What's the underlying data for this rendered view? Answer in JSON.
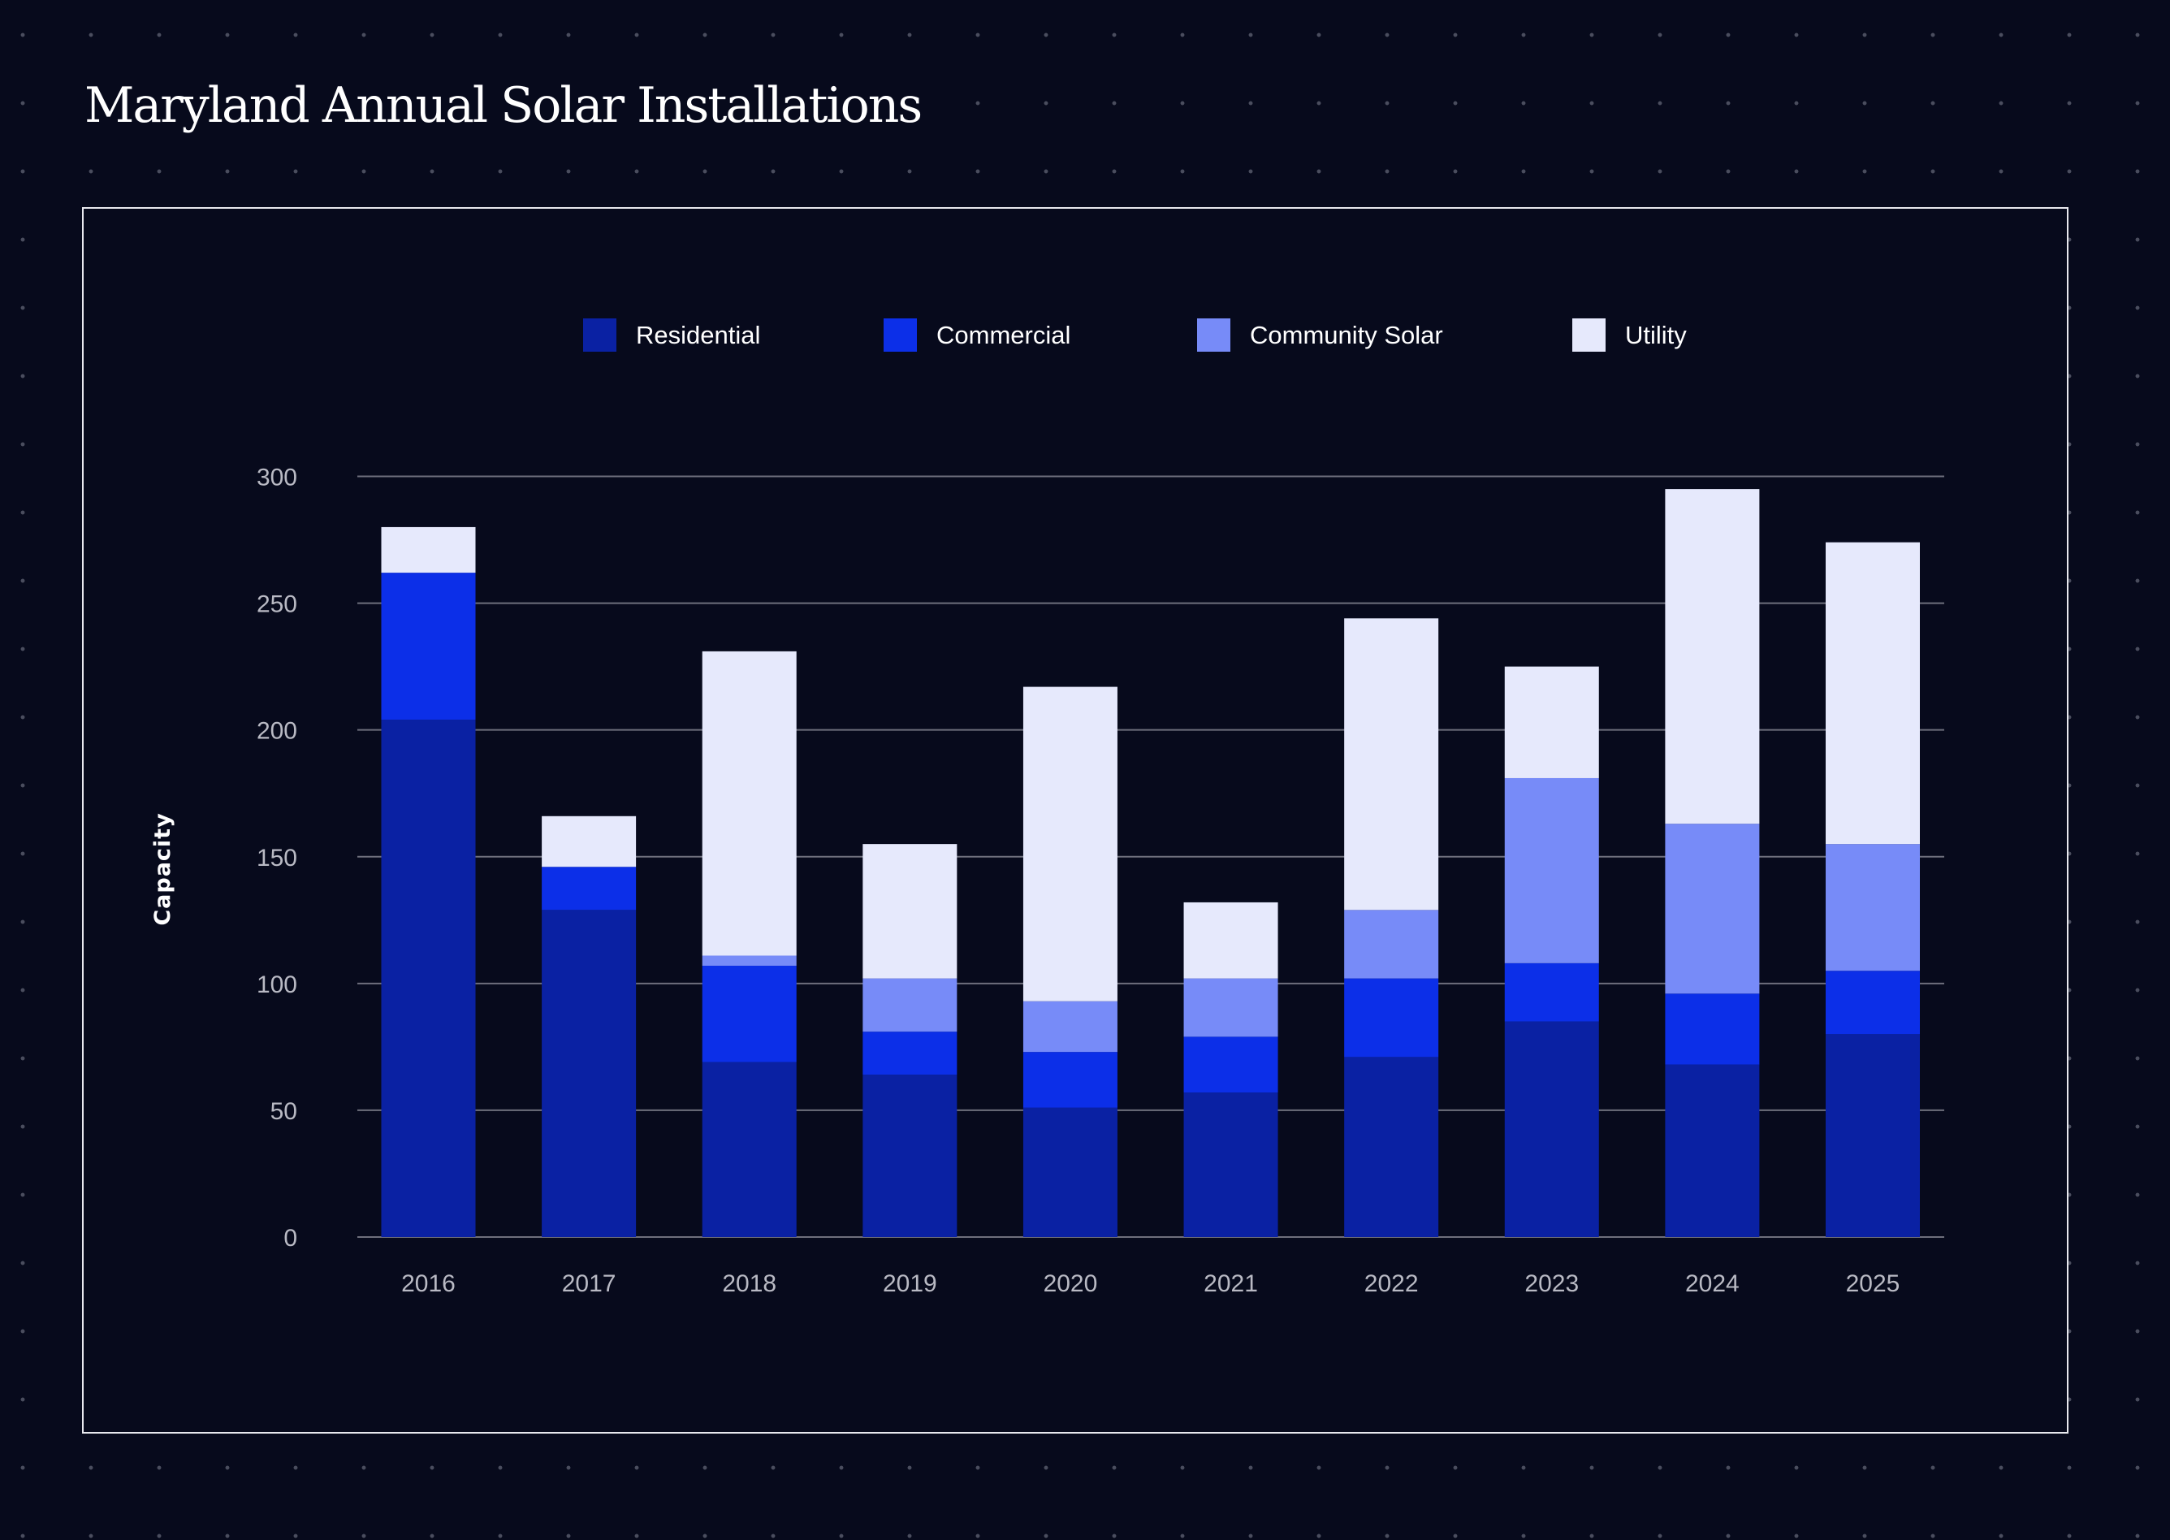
{
  "title": "Maryland Annual Solar Installations",
  "colors": {
    "background": "#070a1c",
    "gridline": "#6e6f7c",
    "tick_text": "#b9bac4"
  },
  "chart_data": {
    "type": "bar",
    "stacked": true,
    "title": "Maryland Annual Solar Installations",
    "xlabel": "",
    "ylabel": "Capacity",
    "ylim": [
      0,
      300
    ],
    "yticks": [
      0,
      50,
      100,
      150,
      200,
      250,
      300
    ],
    "grid": true,
    "legend_position": "top-center",
    "categories": [
      "2016",
      "2017",
      "2018",
      "2019",
      "2020",
      "2021",
      "2022",
      "2023",
      "2024",
      "2025"
    ],
    "series": [
      {
        "name": "Residential",
        "color": "#0a21a3",
        "values": [
          204,
          129,
          69,
          64,
          51,
          57,
          71,
          85,
          68,
          80
        ]
      },
      {
        "name": "Commercial",
        "color": "#0c2fe8",
        "values": [
          58,
          17,
          38,
          17,
          22,
          22,
          31,
          23,
          28,
          25
        ]
      },
      {
        "name": "Community Solar",
        "color": "#778bf8",
        "values": [
          0,
          0,
          4,
          21,
          20,
          23,
          27,
          73,
          67,
          50
        ]
      },
      {
        "name": "Utility",
        "color": "#e6e9fc",
        "values": [
          18,
          20,
          120,
          53,
          124,
          30,
          115,
          44,
          132,
          119
        ]
      }
    ]
  }
}
